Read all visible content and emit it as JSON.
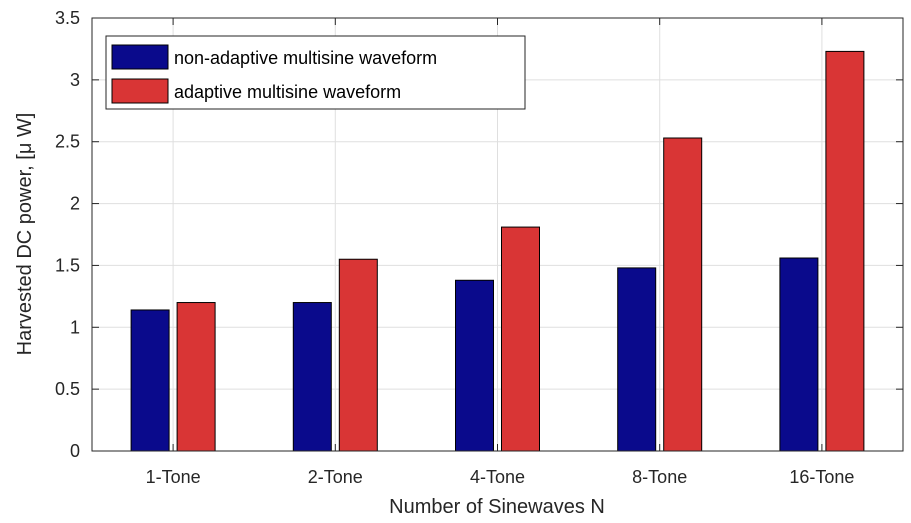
{
  "chart_data": {
    "type": "bar",
    "title": "",
    "xlabel": "Number of Sinewaves N",
    "ylabel": "Harvested DC power, [μ W]",
    "categories": [
      "1-Tone",
      "2-Tone",
      "4-Tone",
      "8-Tone",
      "16-Tone"
    ],
    "ylim": [
      0,
      3.5
    ],
    "yticks": [
      "0",
      "0.5",
      "1",
      "1.5",
      "2",
      "2.5",
      "3",
      "3.5"
    ],
    "grid": true,
    "legend_position": "top-left",
    "series": [
      {
        "name": "non-adaptive multisine waveform",
        "color": "#0a0a8c",
        "values": [
          1.14,
          1.2,
          1.38,
          1.48,
          1.56
        ]
      },
      {
        "name": "adaptive multisine waveform",
        "color": "#d93535",
        "values": [
          1.2,
          1.55,
          1.81,
          2.53,
          3.23
        ]
      }
    ]
  }
}
